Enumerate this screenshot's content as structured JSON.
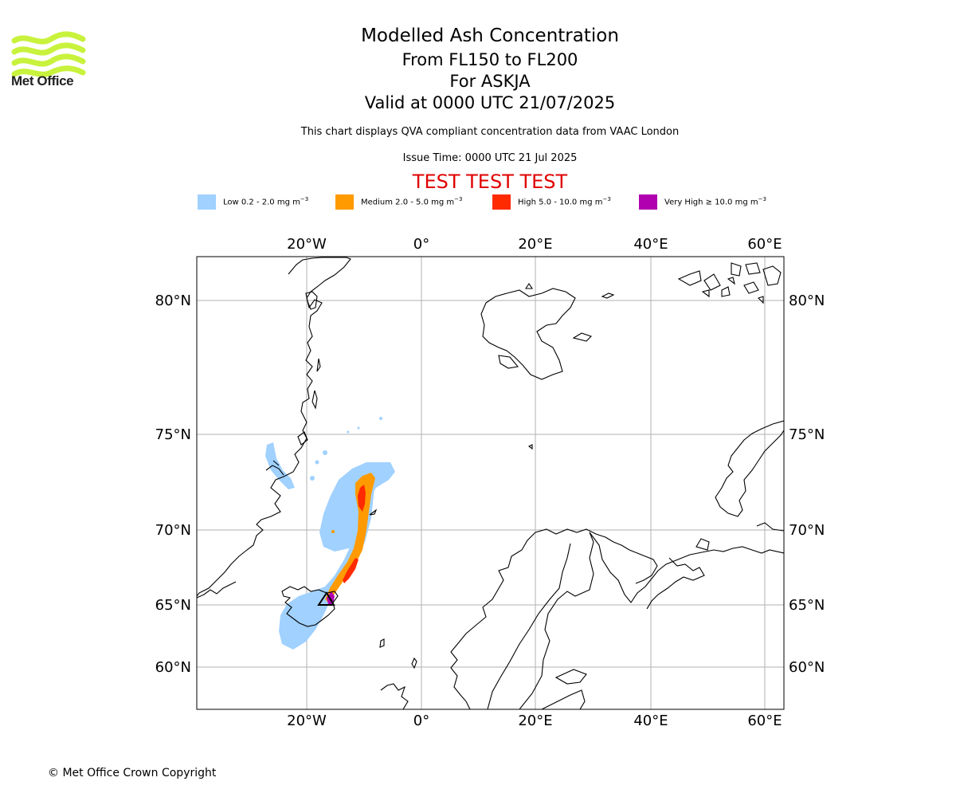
{
  "header": {
    "logo_text": "Met Office",
    "title": "Modelled Ash Concentration",
    "flight_levels": "From FL150 to FL200",
    "volcano": "For ASKJA",
    "valid_time": "Valid at 0000 UTC 21/07/2025",
    "description": "This chart displays QVA compliant concentration data from VAAC London",
    "issue_time": "Issue Time: 0000 UTC 21 Jul 2025",
    "test_banner": "TEST TEST TEST"
  },
  "legend": [
    {
      "label": "Low 0.2 - 2.0 mg m",
      "exp": "−3",
      "color": "#a0d1ff"
    },
    {
      "label": "Medium 2.0 - 5.0 mg m",
      "exp": "−3",
      "color": "#ff9a00"
    },
    {
      "label": "High 5.0 - 10.0 mg m",
      "exp": "−3",
      "color": "#ff2a00"
    },
    {
      "label": "Very High  ≥  10.0 mg m",
      "exp": "−3",
      "color": "#b000b0"
    }
  ],
  "map": {
    "lon_ticks": [
      "20°W",
      "0°",
      "20°E",
      "40°E",
      "60°E"
    ],
    "lat_ticks": [
      "80°N",
      "75°N",
      "70°N",
      "65°N",
      "60°N"
    ],
    "volcano_symbol": "volcano-triangle-icon",
    "grid": true
  },
  "footer": {
    "copyright": "© Met Office Crown Copyright"
  }
}
